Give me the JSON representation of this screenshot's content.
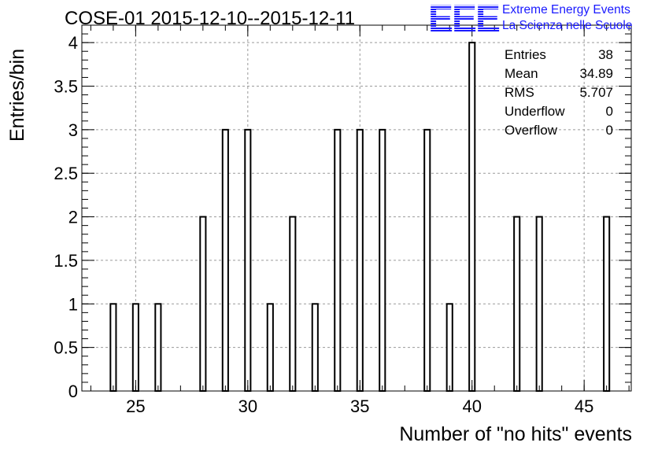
{
  "chart_data": {
    "type": "bar",
    "title": "COSE-01 2015-12-10--2015-12-11",
    "xlabel": "Number of \"no hits\" events",
    "ylabel": "Entries/bin",
    "xlim": [
      22.6,
      47.1
    ],
    "ylim": [
      0,
      4.2
    ],
    "bin_width": 0.25,
    "x_ticks": [
      25,
      30,
      35,
      40,
      45
    ],
    "y_ticks": [
      "0",
      "0.5",
      "1",
      "1.5",
      "2",
      "2.5",
      "3",
      "3.5",
      "4"
    ],
    "grid": true,
    "x": [
      24,
      25,
      26,
      28,
      29,
      30,
      31,
      32,
      33,
      34,
      35,
      36,
      38,
      39,
      40,
      42,
      43,
      46
    ],
    "values": [
      1,
      1,
      1,
      2,
      3,
      3,
      1,
      2,
      1,
      3,
      3,
      3,
      3,
      1,
      4,
      2,
      2,
      2
    ],
    "stats": [
      {
        "label": "Entries",
        "value": "38"
      },
      {
        "label": "Mean",
        "value": "34.89"
      },
      {
        "label": "RMS",
        "value": "5.707"
      },
      {
        "label": "Underflow",
        "value": "0"
      },
      {
        "label": "Overflow",
        "value": "0"
      }
    ]
  },
  "logo": {
    "mark": "EEE",
    "line1": "Extreme Energy Events",
    "line2": "La Scienza nelle Scuole",
    "color": "#1a1aff"
  }
}
